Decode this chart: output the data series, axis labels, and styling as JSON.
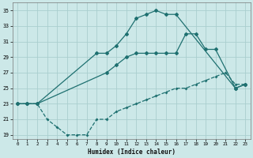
{
  "xlabel": "Humidex (Indice chaleur)",
  "bg_color": "#cce8e8",
  "grid_color": "#aacece",
  "line_color": "#1e7070",
  "xlim_min": -0.5,
  "xlim_max": 23.5,
  "ylim_min": 18.5,
  "ylim_max": 36.0,
  "yticks": [
    19,
    21,
    23,
    25,
    27,
    29,
    31,
    33,
    35
  ],
  "xticks": [
    0,
    1,
    2,
    3,
    4,
    5,
    6,
    7,
    8,
    9,
    10,
    11,
    12,
    13,
    14,
    15,
    16,
    17,
    18,
    19,
    20,
    21,
    22,
    23
  ],
  "curve1_x": [
    0,
    1,
    2,
    8,
    9,
    10,
    11,
    12,
    13,
    14,
    15,
    16,
    22,
    23
  ],
  "curve1_y": [
    23,
    23,
    23,
    29.5,
    29.5,
    30.5,
    32,
    34,
    34.5,
    35,
    34.5,
    34.5,
    25,
    25.5
  ],
  "curve2_x": [
    0,
    1,
    2,
    9,
    10,
    11,
    12,
    13,
    14,
    15,
    16,
    17,
    18,
    19,
    20,
    22,
    23
  ],
  "curve2_y": [
    23,
    23,
    23,
    27,
    28,
    29,
    29.5,
    29.5,
    29.5,
    29.5,
    29.5,
    32,
    32,
    30,
    30,
    25,
    25.5
  ],
  "curve3_x": [
    0,
    1,
    2,
    3,
    4,
    5,
    6,
    7,
    8,
    9,
    10,
    11,
    12,
    13,
    14,
    15,
    16,
    17,
    18,
    19,
    20,
    21,
    22,
    23
  ],
  "curve3_y": [
    23,
    23,
    23,
    21,
    20,
    19,
    19,
    19,
    21,
    21,
    22,
    22.5,
    23,
    23.5,
    24,
    24.5,
    25,
    25,
    25.5,
    26,
    26.5,
    27,
    25.5,
    25.5
  ]
}
